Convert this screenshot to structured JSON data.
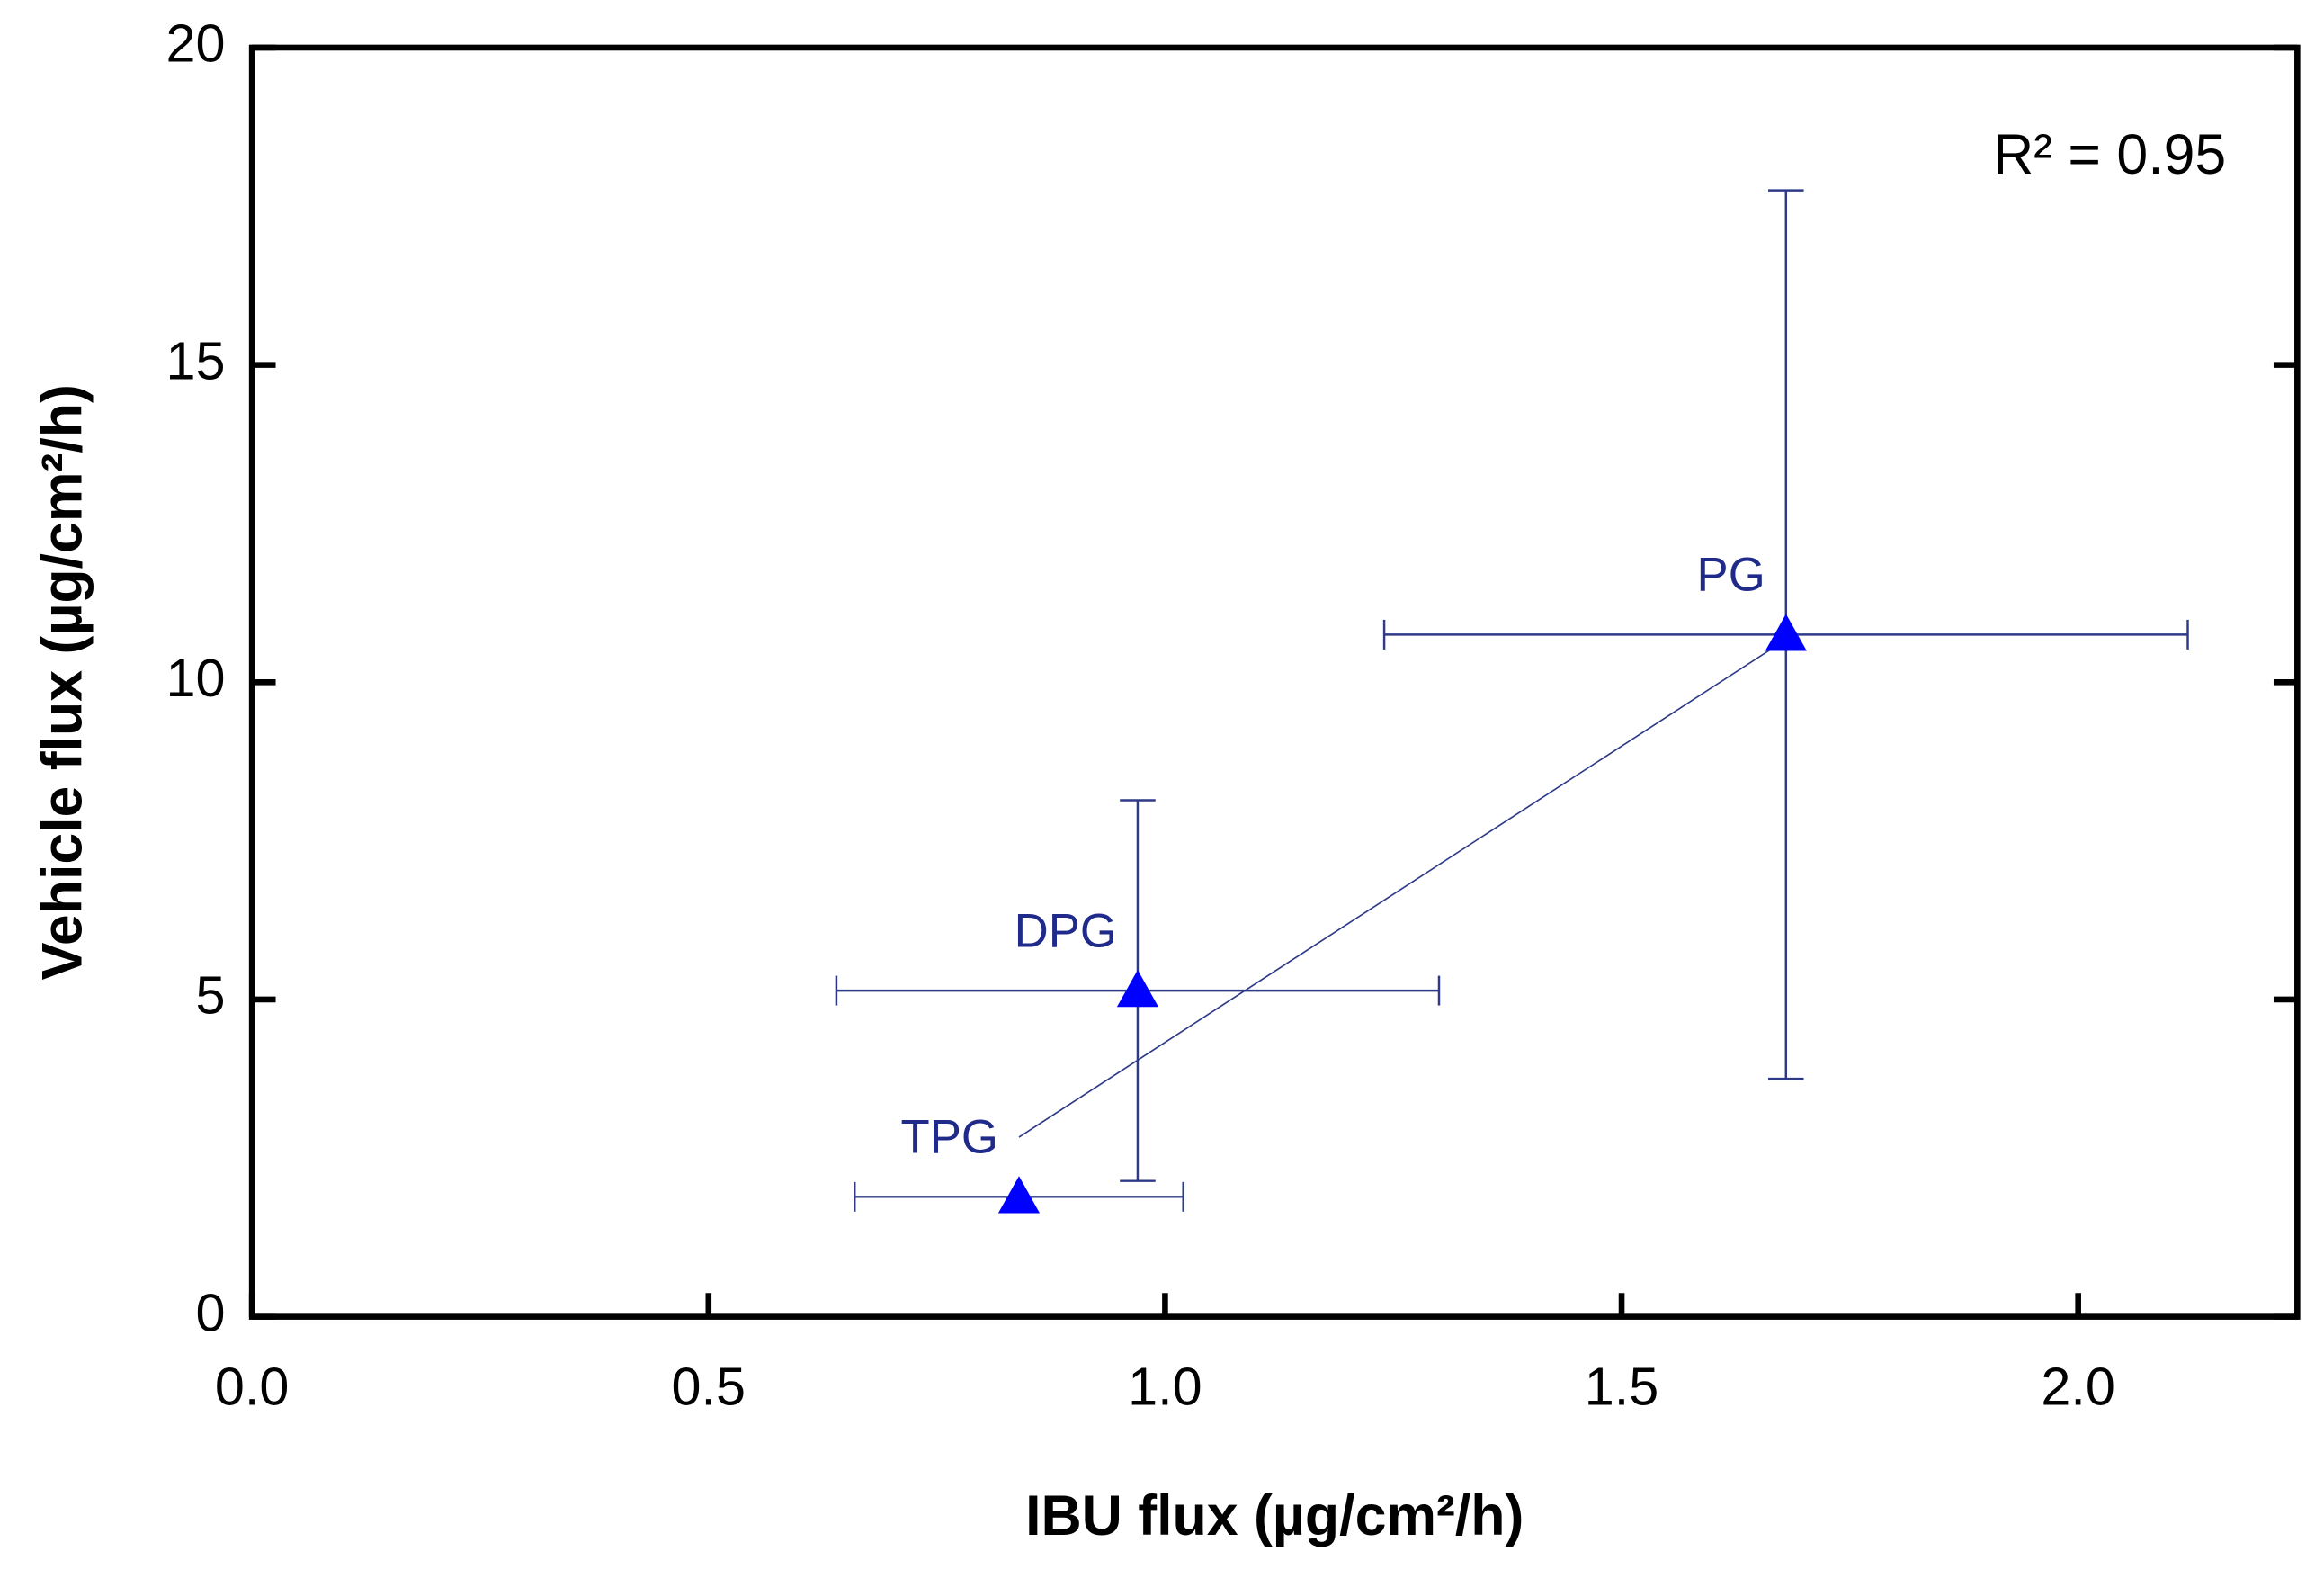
{
  "chart_data": {
    "type": "scatter",
    "x_label": "IBU flux (µg/cm²/h)",
    "y_label": "Vehicle flux (µg/cm²/h)",
    "annotation": "R² = 0.95",
    "labels": [
      "TPG",
      "DPG",
      "PG"
    ],
    "x": [
      0.84,
      0.97,
      1.68
    ],
    "y": [
      1.89,
      5.14,
      10.75
    ],
    "xerr": [
      0.18,
      0.33,
      0.44
    ],
    "yerr": [
      null,
      3.0,
      7.0
    ],
    "color": "#0000ff",
    "error_color": "#2e3a87",
    "fit_line": {
      "x": [
        0.84,
        1.67
      ],
      "y": [
        2.83,
        10.58
      ]
    },
    "xlim": [
      0,
      2.24
    ],
    "ylim": [
      0,
      20
    ],
    "xticks": [
      {
        "value": 0,
        "label": "0.0"
      },
      {
        "value": 0.5,
        "label": "0.5"
      },
      {
        "value": 1,
        "label": "1.0"
      },
      {
        "value": 1.5,
        "label": "1.5"
      },
      {
        "value": 2,
        "label": "2.0"
      }
    ],
    "yticks": [
      0,
      5,
      10,
      15,
      20
    ]
  }
}
